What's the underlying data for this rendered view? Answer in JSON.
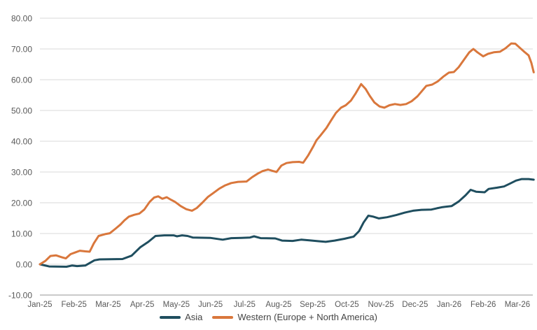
{
  "chart_data": {
    "type": "line",
    "title": "",
    "grid": true,
    "legend_position": "bottom",
    "ylim": [
      -10,
      80
    ],
    "y_tick_step": 10,
    "y_ticks": [
      {
        "label": "80.00",
        "value": 80
      },
      {
        "label": "70.00",
        "value": 70
      },
      {
        "label": "60.00",
        "value": 60
      },
      {
        "label": "50.00",
        "value": 50
      },
      {
        "label": "40.00",
        "value": 40
      },
      {
        "label": "30.00",
        "value": 30
      },
      {
        "label": "20.00",
        "value": 20
      },
      {
        "label": "10.00",
        "value": 10
      },
      {
        "label": "0.00",
        "value": 0
      },
      {
        "label": "-10.00",
        "value": -10
      }
    ],
    "x_ticks": [
      "Jan-25",
      "Feb-25",
      "Mar-25",
      "Apr-25",
      "May-25",
      "Jun-25",
      "Jul-25",
      "Aug-25",
      "Sep-25",
      "Oct-25",
      "Nov-25",
      "Dec-25",
      "Jan-26",
      "Feb-26",
      "Mar-26"
    ],
    "series": [
      {
        "name": "Asia",
        "color": "#1F4E5F",
        "points": [
          [
            0.0,
            0.0
          ],
          [
            0.27,
            -0.7
          ],
          [
            0.78,
            -0.8
          ],
          [
            0.94,
            -0.4
          ],
          [
            1.09,
            -0.6
          ],
          [
            1.33,
            -0.4
          ],
          [
            1.46,
            0.4
          ],
          [
            1.6,
            1.3
          ],
          [
            1.75,
            1.6
          ],
          [
            2.42,
            1.7
          ],
          [
            2.69,
            2.8
          ],
          [
            2.94,
            5.5
          ],
          [
            3.18,
            7.3
          ],
          [
            3.39,
            9.2
          ],
          [
            3.65,
            9.4
          ],
          [
            3.92,
            9.4
          ],
          [
            4.02,
            9.1
          ],
          [
            4.17,
            9.4
          ],
          [
            4.33,
            9.2
          ],
          [
            4.48,
            8.7
          ],
          [
            4.99,
            8.6
          ],
          [
            5.36,
            8.0
          ],
          [
            5.61,
            8.5
          ],
          [
            5.91,
            8.6
          ],
          [
            6.16,
            8.7
          ],
          [
            6.28,
            9.1
          ],
          [
            6.47,
            8.5
          ],
          [
            6.9,
            8.4
          ],
          [
            7.1,
            7.7
          ],
          [
            7.41,
            7.6
          ],
          [
            7.66,
            8.0
          ],
          [
            7.9,
            7.8
          ],
          [
            8.17,
            7.5
          ],
          [
            8.38,
            7.3
          ],
          [
            8.64,
            7.7
          ],
          [
            8.93,
            8.3
          ],
          [
            9.2,
            9.0
          ],
          [
            9.36,
            10.8
          ],
          [
            9.49,
            13.6
          ],
          [
            9.63,
            15.8
          ],
          [
            9.77,
            15.5
          ],
          [
            9.94,
            14.9
          ],
          [
            10.18,
            15.3
          ],
          [
            10.45,
            16.0
          ],
          [
            10.7,
            16.8
          ],
          [
            10.94,
            17.4
          ],
          [
            11.19,
            17.7
          ],
          [
            11.48,
            17.8
          ],
          [
            11.64,
            18.2
          ],
          [
            11.81,
            18.6
          ],
          [
            12.07,
            18.9
          ],
          [
            12.28,
            20.4
          ],
          [
            12.48,
            22.4
          ],
          [
            12.63,
            24.2
          ],
          [
            12.79,
            23.6
          ],
          [
            13.04,
            23.4
          ],
          [
            13.16,
            24.5
          ],
          [
            13.41,
            24.9
          ],
          [
            13.61,
            25.3
          ],
          [
            13.78,
            26.2
          ],
          [
            13.96,
            27.2
          ],
          [
            14.13,
            27.7
          ],
          [
            14.33,
            27.7
          ],
          [
            14.48,
            27.5
          ]
        ]
      },
      {
        "name": "Western (Europe + North America)",
        "color": "#D9773C",
        "points": [
          [
            0.0,
            0.0
          ],
          [
            0.16,
            1.1
          ],
          [
            0.31,
            2.7
          ],
          [
            0.47,
            2.9
          ],
          [
            0.64,
            2.3
          ],
          [
            0.76,
            1.9
          ],
          [
            0.9,
            3.3
          ],
          [
            1.05,
            3.9
          ],
          [
            1.17,
            4.4
          ],
          [
            1.33,
            4.2
          ],
          [
            1.46,
            4.1
          ],
          [
            1.58,
            6.8
          ],
          [
            1.72,
            9.2
          ],
          [
            1.91,
            9.8
          ],
          [
            2.05,
            10.1
          ],
          [
            2.22,
            11.6
          ],
          [
            2.36,
            12.9
          ],
          [
            2.48,
            14.3
          ],
          [
            2.61,
            15.5
          ],
          [
            2.77,
            16.1
          ],
          [
            2.92,
            16.5
          ],
          [
            3.06,
            17.8
          ],
          [
            3.22,
            20.3
          ],
          [
            3.35,
            21.7
          ],
          [
            3.47,
            22.1
          ],
          [
            3.59,
            21.3
          ],
          [
            3.72,
            21.8
          ],
          [
            3.84,
            21.0
          ],
          [
            3.96,
            20.3
          ],
          [
            4.13,
            18.9
          ],
          [
            4.29,
            17.9
          ],
          [
            4.46,
            17.4
          ],
          [
            4.6,
            18.3
          ],
          [
            4.76,
            20.0
          ],
          [
            4.93,
            21.9
          ],
          [
            5.09,
            23.2
          ],
          [
            5.26,
            24.6
          ],
          [
            5.42,
            25.6
          ],
          [
            5.61,
            26.4
          ],
          [
            5.81,
            26.8
          ],
          [
            6.06,
            26.9
          ],
          [
            6.22,
            28.3
          ],
          [
            6.39,
            29.5
          ],
          [
            6.53,
            30.3
          ],
          [
            6.69,
            30.8
          ],
          [
            6.84,
            30.3
          ],
          [
            6.94,
            30.0
          ],
          [
            7.08,
            32.1
          ],
          [
            7.23,
            32.9
          ],
          [
            7.41,
            33.2
          ],
          [
            7.6,
            33.3
          ],
          [
            7.72,
            33.0
          ],
          [
            7.86,
            35.3
          ],
          [
            8.01,
            38.2
          ],
          [
            8.11,
            40.3
          ],
          [
            8.23,
            41.9
          ],
          [
            8.4,
            44.3
          ],
          [
            8.54,
            46.8
          ],
          [
            8.68,
            49.2
          ],
          [
            8.83,
            50.9
          ],
          [
            8.97,
            51.7
          ],
          [
            9.12,
            53.2
          ],
          [
            9.26,
            55.6
          ],
          [
            9.42,
            58.6
          ],
          [
            9.55,
            57.0
          ],
          [
            9.67,
            54.8
          ],
          [
            9.81,
            52.6
          ],
          [
            9.96,
            51.3
          ],
          [
            10.1,
            50.9
          ],
          [
            10.25,
            51.7
          ],
          [
            10.41,
            52.1
          ],
          [
            10.57,
            51.8
          ],
          [
            10.74,
            52.1
          ],
          [
            10.9,
            53.0
          ],
          [
            11.07,
            54.6
          ],
          [
            11.21,
            56.4
          ],
          [
            11.33,
            58.0
          ],
          [
            11.5,
            58.4
          ],
          [
            11.66,
            59.4
          ],
          [
            11.83,
            61.0
          ],
          [
            11.99,
            62.3
          ],
          [
            12.14,
            62.5
          ],
          [
            12.28,
            64.1
          ],
          [
            12.44,
            66.6
          ],
          [
            12.59,
            68.9
          ],
          [
            12.71,
            70.0
          ],
          [
            12.83,
            68.9
          ],
          [
            13.0,
            67.6
          ],
          [
            13.14,
            68.4
          ],
          [
            13.31,
            68.9
          ],
          [
            13.49,
            69.1
          ],
          [
            13.65,
            70.2
          ],
          [
            13.82,
            71.8
          ],
          [
            13.94,
            71.7
          ],
          [
            14.07,
            70.4
          ],
          [
            14.21,
            69.0
          ],
          [
            14.33,
            67.9
          ],
          [
            14.41,
            65.5
          ],
          [
            14.48,
            62.4
          ]
        ]
      }
    ],
    "colors": {
      "gridline": "#D9D9D9",
      "axis_line": "#ABABAB",
      "tick_label": "#595959",
      "legend_text": "#444444"
    }
  }
}
